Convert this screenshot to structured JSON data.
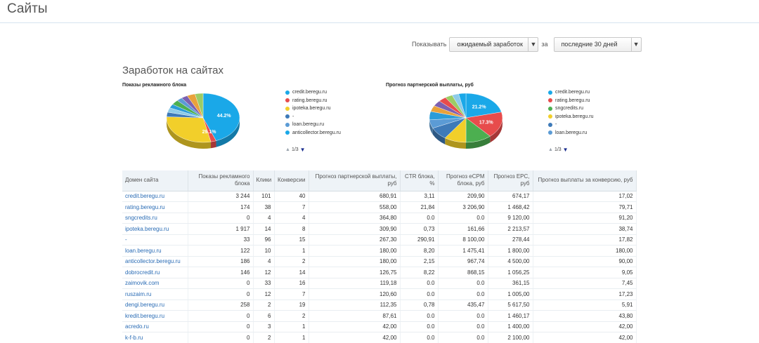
{
  "page": {
    "title": "Сайты"
  },
  "filters": {
    "show_label": "Показывать",
    "metric_value": "ожидаемый заработок",
    "for_label": "за",
    "period_value": "последние 30 дней"
  },
  "section_title": "Заработок на сайтах",
  "chart_data": [
    {
      "type": "pie",
      "title": "Показы рекламного блока",
      "slices": [
        {
          "label": "credit.beregu.ru",
          "value": 44.2,
          "color": "#1aa8e8"
        },
        {
          "label": "rating.beregu.ru",
          "value": 2.4,
          "color": "#e74c4c"
        },
        {
          "label": "ipoteka.beregu.ru",
          "value": 29.1,
          "color": "#f2cf2a"
        },
        {
          "label": "-",
          "value": 3.0,
          "color": "#3e7ab8"
        },
        {
          "label": "",
          "value": 3.0,
          "color": "#8ecbe8"
        },
        {
          "label": "",
          "value": 2.6,
          "color": "#2b9cd8"
        },
        {
          "label": "",
          "value": 3.2,
          "color": "#4caf50"
        },
        {
          "label": "",
          "value": 2.5,
          "color": "#5b9bd5"
        },
        {
          "label": "",
          "value": 2.8,
          "color": "#7d60b0"
        },
        {
          "label": "",
          "value": 3.6,
          "color": "#e9a23b"
        },
        {
          "label": "",
          "value": 3.6,
          "color": "#9ccc65"
        }
      ],
      "legend": [
        {
          "label": "credit.beregu.ru",
          "color": "#1aa8e8"
        },
        {
          "label": "rating.beregu.ru",
          "color": "#e74c4c"
        },
        {
          "label": "ipoteka.beregu.ru",
          "color": "#f2cf2a"
        },
        {
          "label": "-",
          "color": "#3e7ab8"
        },
        {
          "label": "loan.beregu.ru",
          "color": "#5b9bd5"
        },
        {
          "label": "anticollector.beregu.ru",
          "color": "#1aa8e8"
        }
      ],
      "data_labels": [
        "44.2%",
        "29.1%"
      ],
      "pager": "1/3"
    },
    {
      "type": "pie",
      "title": "Прогноз партнерской выплаты, руб",
      "slices": [
        {
          "label": "credit.beregu.ru",
          "value": 21.2,
          "color": "#1aa8e8"
        },
        {
          "label": "rating.beregu.ru",
          "value": 17.3,
          "color": "#e74c4c"
        },
        {
          "label": "sngcredits.ru",
          "value": 11.5,
          "color": "#4caf50"
        },
        {
          "label": "ipoteka.beregu.ru",
          "value": 9.7,
          "color": "#f2cf2a"
        },
        {
          "label": "-",
          "value": 8.4,
          "color": "#3e7ab8"
        },
        {
          "label": "loan.beregu.ru",
          "value": 5.6,
          "color": "#5b9bd5"
        },
        {
          "label": "",
          "value": 5.5,
          "color": "#2b9cd8"
        },
        {
          "label": "",
          "value": 4.0,
          "color": "#e9a23b"
        },
        {
          "label": "",
          "value": 3.8,
          "color": "#7d60b0"
        },
        {
          "label": "",
          "value": 3.5,
          "color": "#e74c4c"
        },
        {
          "label": "",
          "value": 3.3,
          "color": "#9ccc65"
        },
        {
          "label": "",
          "value": 3.0,
          "color": "#8ecbe8"
        },
        {
          "label": "",
          "value": 3.2,
          "color": "#1aa8e8"
        }
      ],
      "legend": [
        {
          "label": "credit.beregu.ru",
          "color": "#1aa8e8"
        },
        {
          "label": "rating.beregu.ru",
          "color": "#e74c4c"
        },
        {
          "label": "sngcredits.ru",
          "color": "#4caf50"
        },
        {
          "label": "ipoteka.beregu.ru",
          "color": "#f2cf2a"
        },
        {
          "label": "-",
          "color": "#3e7ab8"
        },
        {
          "label": "loan.beregu.ru",
          "color": "#5b9bd5"
        }
      ],
      "data_labels": [
        "21.2%",
        "17.3%"
      ],
      "pager": "1/3"
    }
  ],
  "table": {
    "headers": [
      "Домен сайта",
      "Показы рекламного блока",
      "Клики",
      "Конверсии",
      "Прогноз партнерской выплаты, руб",
      "CTR блока, %",
      "Прогноз eCPM блока, руб",
      "Прогноз EPC, руб",
      "Прогноз выплаты за конверсию, руб"
    ],
    "rows": [
      [
        "credit.beregu.ru",
        "3 244",
        "101",
        "40",
        "680,91",
        "3,11",
        "209,90",
        "674,17",
        "17,02"
      ],
      [
        "rating.beregu.ru",
        "174",
        "38",
        "7",
        "558,00",
        "21,84",
        "3 206,90",
        "1 468,42",
        "79,71"
      ],
      [
        "sngcredits.ru",
        "0",
        "4",
        "4",
        "364,80",
        "0.0",
        "0.0",
        "9 120,00",
        "91,20"
      ],
      [
        "ipoteka.beregu.ru",
        "1 917",
        "14",
        "8",
        "309,90",
        "0,73",
        "161,66",
        "2 213,57",
        "38,74"
      ],
      [
        "-",
        "33",
        "96",
        "15",
        "267,30",
        "290,91",
        "8 100,00",
        "278,44",
        "17,82"
      ],
      [
        "loan.beregu.ru",
        "122",
        "10",
        "1",
        "180,00",
        "8,20",
        "1 475,41",
        "1 800,00",
        "180,00"
      ],
      [
        "anticollector.beregu.ru",
        "186",
        "4",
        "2",
        "180,00",
        "2,15",
        "967,74",
        "4 500,00",
        "90,00"
      ],
      [
        "dobrocredit.ru",
        "146",
        "12",
        "14",
        "126,75",
        "8,22",
        "868,15",
        "1 056,25",
        "9,05"
      ],
      [
        "zaimovik.com",
        "0",
        "33",
        "16",
        "119,18",
        "0.0",
        "0.0",
        "361,15",
        "7,45"
      ],
      [
        "ruszaim.ru",
        "0",
        "12",
        "7",
        "120,60",
        "0.0",
        "0.0",
        "1 005,00",
        "17,23"
      ],
      [
        "dengi.beregu.ru",
        "258",
        "2",
        "19",
        "112,35",
        "0,78",
        "435,47",
        "5 617,50",
        "5,91"
      ],
      [
        "kredit.beregu.ru",
        "0",
        "6",
        "2",
        "87,61",
        "0.0",
        "0.0",
        "1 460,17",
        "43,80"
      ],
      [
        "acredo.ru",
        "0",
        "3",
        "1",
        "42,00",
        "0.0",
        "0.0",
        "1 400,00",
        "42,00"
      ],
      [
        "k-f-b.ru",
        "0",
        "2",
        "1",
        "42,00",
        "0.0",
        "0.0",
        "2 100,00",
        "42,00"
      ]
    ]
  }
}
